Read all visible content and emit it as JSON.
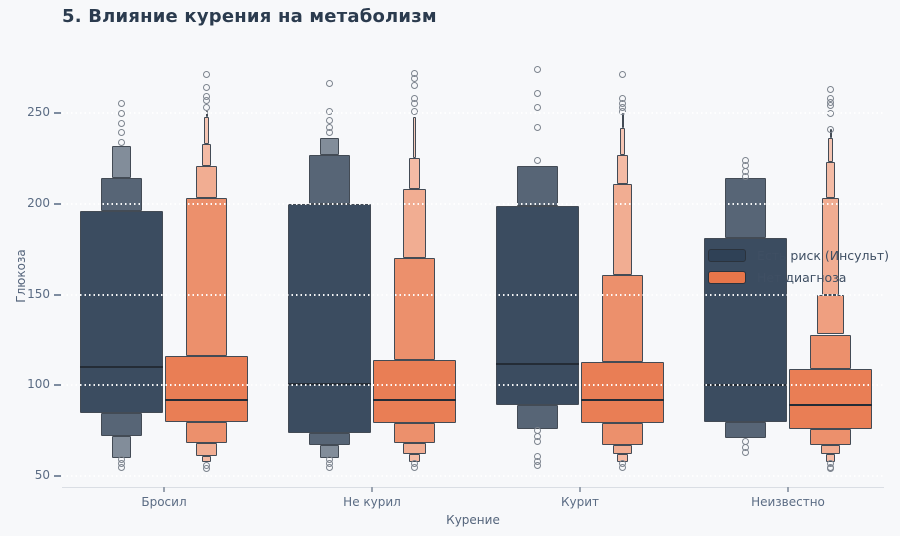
{
  "title": "5. Влияние курения на метаболизм",
  "colors": {
    "background": "#f7f8fa",
    "grid": "#ffffff",
    "tick_text": "#5b6c84",
    "title_text": "#2b3b4e",
    "risk_series": "#2f4156",
    "no_diagnosis_series": "#e8764a"
  },
  "chart_data": {
    "type": "boxen",
    "title": "5. Влияние курения на метаболизм",
    "xlabel": "Курение",
    "ylabel": "Глюкоза",
    "y_ticks": [
      50,
      100,
      150,
      200,
      250
    ],
    "ylim": [
      44,
      277
    ],
    "grid": "horizontal-dotted-white",
    "legend_position": "center-right",
    "categories": [
      "Бросил",
      "Не курил",
      "Курит",
      "Неизвестно"
    ],
    "series": [
      {
        "name": "Есть риск (Инсульт)",
        "color": "#2f4156"
      },
      {
        "name": "Нет диагноза",
        "color": "#e8764a"
      }
    ],
    "groups": [
      {
        "category": "Бросил",
        "boxens": [
          {
            "series": 0,
            "median": 110,
            "boxes": [
              [
                214,
                232,
                0.23
              ],
              [
                196,
                214,
                0.5
              ],
              [
                85,
                196,
                1
              ],
              [
                72,
                85,
                0.5
              ],
              [
                60,
                72,
                0.23
              ]
            ],
            "outliers": [
              255,
              250,
              244,
              239,
              234,
              59,
              57,
              55
            ]
          },
          {
            "series": 1,
            "median": 92,
            "boxes": [
              [
                248,
                251,
                0.02
              ],
              [
                233,
                248,
                0.05
              ],
              [
                221,
                233,
                0.12
              ],
              [
                203,
                221,
                0.26
              ],
              [
                116,
                203,
                0.5
              ],
              [
                80,
                116,
                1
              ],
              [
                68,
                80,
                0.5
              ],
              [
                61,
                68,
                0.26
              ],
              [
                58,
                61,
                0.12
              ]
            ],
            "outliers": [
              271,
              264,
              259,
              257,
              253,
              56,
              54
            ]
          }
        ]
      },
      {
        "category": "Не курил",
        "boxens": [
          {
            "series": 0,
            "median": 101,
            "boxes": [
              [
                227,
                236,
                0.24
              ],
              [
                200,
                227,
                0.5
              ],
              [
                74,
                200,
                1
              ],
              [
                67,
                74,
                0.5
              ],
              [
                60,
                67,
                0.24
              ]
            ],
            "outliers": [
              266,
              251,
              246,
              242,
              239,
              59,
              57,
              55
            ]
          },
          {
            "series": 1,
            "median": 92,
            "boxes": [
              [
                225,
                248,
                0.03
              ],
              [
                208,
                225,
                0.13
              ],
              [
                170,
                208,
                0.27
              ],
              [
                114,
                170,
                0.5
              ],
              [
                79,
                114,
                1
              ],
              [
                68,
                79,
                0.5
              ],
              [
                62,
                68,
                0.27
              ],
              [
                58,
                62,
                0.13
              ]
            ],
            "outliers": [
              272,
              269,
              265,
              258,
              255,
              251,
              57,
              55
            ]
          }
        ]
      },
      {
        "category": "Курит",
        "boxens": [
          {
            "series": 0,
            "median": 112,
            "boxes": [
              [
                199,
                221,
                0.5
              ],
              [
                89,
                199,
                1
              ],
              [
                76,
                89,
                0.5
              ]
            ],
            "outliers": [
              274,
              261,
              253,
              242,
              224,
              75,
              72,
              69,
              61,
              58,
              56
            ]
          },
          {
            "series": 1,
            "median": 92,
            "boxes": [
              [
                242,
                250,
                0.02
              ],
              [
                227,
                242,
                0.05
              ],
              [
                211,
                227,
                0.13
              ],
              [
                161,
                211,
                0.24
              ],
              [
                113,
                161,
                0.5
              ],
              [
                79,
                113,
                1
              ],
              [
                67,
                79,
                0.5
              ],
              [
                62,
                67,
                0.24
              ],
              [
                58,
                62,
                0.13
              ]
            ],
            "outliers": [
              271,
              258,
              255,
              253,
              251,
              57,
              55
            ]
          }
        ]
      },
      {
        "category": "Неизвестно",
        "boxens": [
          {
            "series": 0,
            "median": 100,
            "boxes": [
              [
                181,
                214,
                0.5
              ],
              [
                80,
                181,
                1
              ],
              [
                71,
                80,
                0.5
              ]
            ],
            "outliers": [
              224,
              221,
              218,
              215,
              69,
              66,
              63
            ]
          },
          {
            "series": 1,
            "median": 89,
            "boxes": [
              [
                236,
                241,
                0.02
              ],
              [
                223,
                236,
                0.05
              ],
              [
                203,
                223,
                0.12
              ],
              [
                150,
                203,
                0.21
              ],
              [
                128,
                150,
                0.33
              ],
              [
                109,
                128,
                0.5
              ],
              [
                76,
                109,
                1
              ],
              [
                67,
                76,
                0.5
              ],
              [
                62,
                67,
                0.24
              ],
              [
                58,
                62,
                0.12
              ]
            ],
            "outliers": [
              263,
              258,
              256,
              254,
              250,
              241,
              57,
              55,
              54
            ]
          }
        ]
      }
    ]
  }
}
